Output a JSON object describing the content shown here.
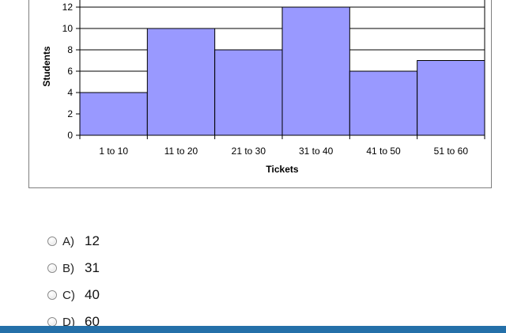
{
  "chart_data": {
    "type": "bar",
    "categories": [
      "1 to 10",
      "11 to 20",
      "21 to 30",
      "31 to 40",
      "41 to 50",
      "51 to 60"
    ],
    "values": [
      4,
      10,
      8,
      12,
      6,
      7
    ],
    "title": "",
    "xlabel": "Tickets",
    "ylabel": "Students",
    "ylim": [
      0,
      12
    ],
    "yticks": [
      0,
      2,
      4,
      6,
      8,
      10,
      12
    ],
    "grid": true,
    "bar_color": "#9999ff"
  },
  "options": [
    {
      "letter": "A)",
      "value": "12"
    },
    {
      "letter": "B)",
      "value": "31"
    },
    {
      "letter": "C)",
      "value": "40"
    },
    {
      "letter": "D)",
      "value": "60"
    }
  ],
  "colors": {
    "bottom_bar": "#2470a9"
  }
}
